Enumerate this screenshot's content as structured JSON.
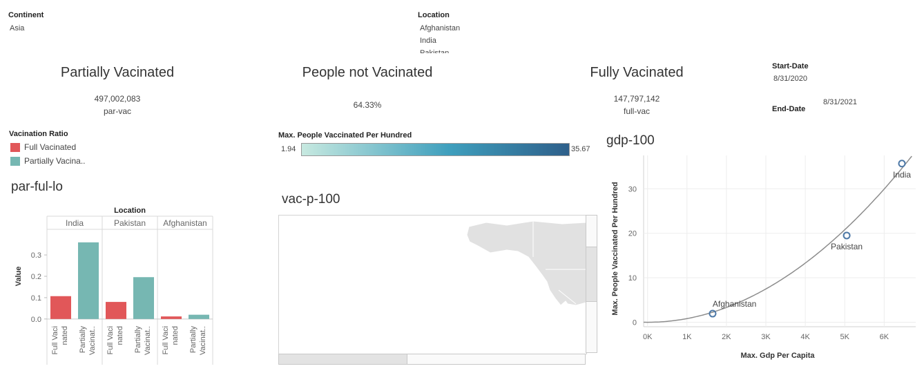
{
  "filters": {
    "continent": {
      "label": "Continent",
      "value": "Asia"
    },
    "location": {
      "label": "Location",
      "items": [
        "Afghanistan",
        "India",
        "Pakistan"
      ]
    },
    "start_date": {
      "label": "Start-Date",
      "value": "8/31/2020"
    },
    "end_date": {
      "label": "End-Date",
      "value": "8/31/2021"
    }
  },
  "kpis": {
    "partial": {
      "title": "Partially  Vacinated",
      "value": "497,002,083",
      "sub": "par-vac"
    },
    "not_vac": {
      "title": "People not Vacinated",
      "value": "64.33%"
    },
    "full": {
      "title": "Fully Vacinated",
      "value": "147,797,142",
      "sub": "full-vac"
    }
  },
  "legend": {
    "title": "Vacination Ratio",
    "items": [
      {
        "label": "Full Vacinated",
        "color": "#e15759"
      },
      {
        "label": "Partially Vacina..",
        "color": "#76b7b2"
      }
    ]
  },
  "gradient_legend": {
    "title": "Max. People Vaccinated Per Hundred",
    "min": "1.94",
    "max": "35.67",
    "color_start": "#c7e9e0",
    "color_mid": "#3f9fbd",
    "color_end": "#2e5f8a"
  },
  "bar_sheet": {
    "title": "par-ful-lo",
    "header": "Location",
    "ylabel": "Value"
  },
  "map_sheet": {
    "title": "vac-p-100"
  },
  "scatter_sheet": {
    "title": "gdp-100"
  },
  "chart_data": [
    {
      "type": "bar",
      "title": "par-ful-lo",
      "xlabel": "Location",
      "ylabel": "Value",
      "categories": [
        "India",
        "Pakistan",
        "Afghanistan"
      ],
      "series": [
        {
          "name": "Full Vacinated",
          "color": "#e15759",
          "values": [
            0.107,
            0.08,
            0.012
          ]
        },
        {
          "name": "Partially Vacinated",
          "color": "#76b7b2",
          "values": [
            0.359,
            0.196,
            0.02
          ]
        }
      ],
      "sub_labels": [
        [
          "Full Vaci",
          "nated"
        ],
        [
          "Partially",
          "Vacinat.."
        ]
      ],
      "yticks": [
        "0.0",
        "0.1",
        "0.2",
        "0.3"
      ],
      "ylim": [
        -0.02,
        0.42
      ]
    },
    {
      "type": "scatter",
      "title": "gdp-100",
      "xlabel": "Max. Gdp Per Capita",
      "ylabel": "Max. People Vaccinated Per Hundred",
      "points": [
        {
          "label": "Afghanistan",
          "x": 1650,
          "y": 1.94
        },
        {
          "label": "Pakistan",
          "x": 5050,
          "y": 19.5
        },
        {
          "label": "India",
          "x": 6450,
          "y": 35.67
        }
      ],
      "xticks": [
        0,
        1000,
        2000,
        3000,
        4000,
        5000,
        6000
      ],
      "xtick_labels": [
        "0K",
        "1K",
        "2K",
        "3K",
        "4K",
        "5K",
        "6K"
      ],
      "yticks": [
        0,
        10,
        20,
        30
      ],
      "xlim": [
        -100,
        6800
      ],
      "ylim": [
        -1,
        37.5
      ],
      "trend": "quadratic",
      "grid": true,
      "point_color": "#4e79a7"
    }
  ]
}
